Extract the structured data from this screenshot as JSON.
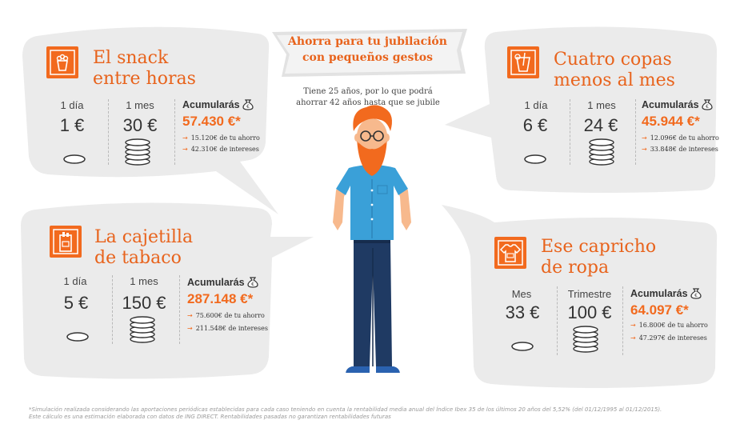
{
  "header": {
    "title_line1": "Ahorra para tu jubilación",
    "title_line2": "con pequeños gestos",
    "subtitle_line1": "Tiene 25 años, por lo que podrá",
    "subtitle_line2": "ahorrar 42 años hasta que se jubile"
  },
  "cards": [
    {
      "title_line1": "El snack",
      "title_line2": "entre horas",
      "icon": "snack-icon",
      "col1_label": "1 día",
      "col1_value": "1 €",
      "col2_label": "1 mes",
      "col2_value": "30 €",
      "acc_label": "Acumularás",
      "acc_value": "57.430 €*",
      "savings": "15.120€ de tu ahorro",
      "interest": "42.310€ de intereses"
    },
    {
      "title_line1": "Cuatro copas",
      "title_line2": "menos al mes",
      "icon": "drink-icon",
      "col1_label": "1 día",
      "col1_value": "6 €",
      "col2_label": "1 mes",
      "col2_value": "24 €",
      "acc_label": "Acumularás",
      "acc_value": "45.944 €*",
      "savings": "12.096€ de tu ahorro",
      "interest": "33.848€ de intereses"
    },
    {
      "title_line1": "La cajetilla",
      "title_line2": "de tabaco",
      "icon": "cigarette-pack-icon",
      "col1_label": "1 día",
      "col1_value": "5 €",
      "col2_label": "1 mes",
      "col2_value": "150 €",
      "acc_label": "Acumularás",
      "acc_value": "287.148 €*",
      "savings": "75.600€ de tu ahorro",
      "interest": "211.548€ de intereses"
    },
    {
      "title_line1": "Ese capricho",
      "title_line2": "de ropa",
      "icon": "tshirt-icon",
      "col1_label": "Mes",
      "col1_value": "33 €",
      "col2_label": "Trimestre",
      "col2_value": "100 €",
      "acc_label": "Acumularás",
      "acc_value": "64.097 €*",
      "savings": "16.800€ de tu ahorro",
      "interest": "47.297€ de intereses"
    }
  ],
  "footnote_line1": "*Simulación realizada considerando las aportaciones periódicas establecidas para cada caso teniendo en cuenta la rentabilidad media anual del Índice Ibex 35 de los últimos 20 años del 5,52% (del 01/12/1995 al 01/12/2015).",
  "footnote_line2": "Este cálculo es una estimación elaborada con datos de ING DIRECT. Rentabilidades pasadas no garantizan rentabilidades futuras",
  "colors": {
    "accent": "#f26a1e",
    "bubble": "#ebebeb",
    "hair": "#f26a1e",
    "shirt": "#3aa0d8",
    "jeans": "#1f3a63"
  }
}
